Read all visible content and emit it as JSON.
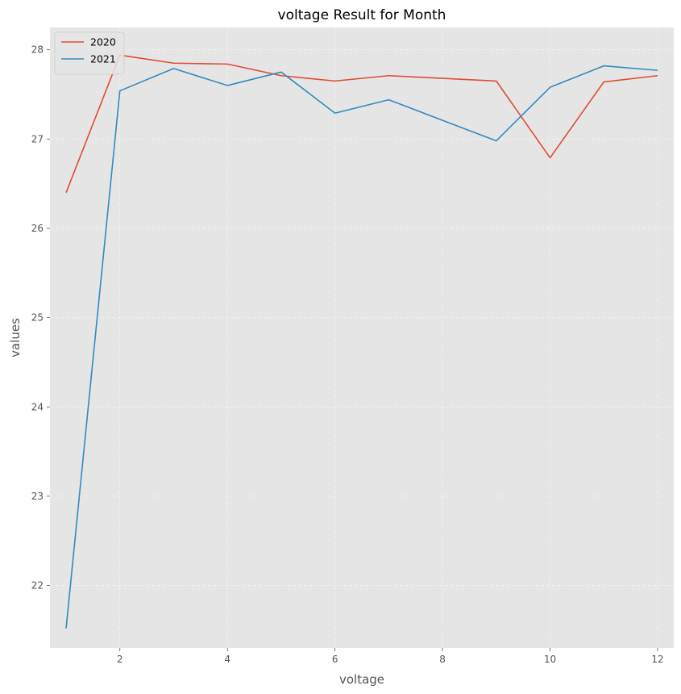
{
  "chart_data": {
    "type": "line",
    "title": "voltage Result for Month",
    "xlabel": "voltage",
    "ylabel": "values",
    "xlim": [
      0.7,
      12.3
    ],
    "ylim": [
      21.3,
      28.25
    ],
    "xticks": [
      2,
      4,
      6,
      8,
      10,
      12
    ],
    "yticks": [
      22,
      23,
      24,
      25,
      26,
      27,
      28
    ],
    "x": [
      1,
      2,
      3,
      4,
      5,
      6,
      7,
      8,
      9,
      10,
      11,
      12
    ],
    "grid": true,
    "legend_position": "top-left",
    "series": [
      {
        "name": "2020",
        "color": "#E24A33",
        "values": [
          26.4,
          27.94,
          27.85,
          27.84,
          27.71,
          27.65,
          27.71,
          27.68,
          27.65,
          26.79,
          27.64,
          27.71
        ]
      },
      {
        "name": "2021",
        "color": "#348ABD",
        "values": [
          21.52,
          27.54,
          27.79,
          27.6,
          27.75,
          27.29,
          27.44,
          27.21,
          26.98,
          27.58,
          27.82,
          27.77
        ]
      }
    ]
  }
}
